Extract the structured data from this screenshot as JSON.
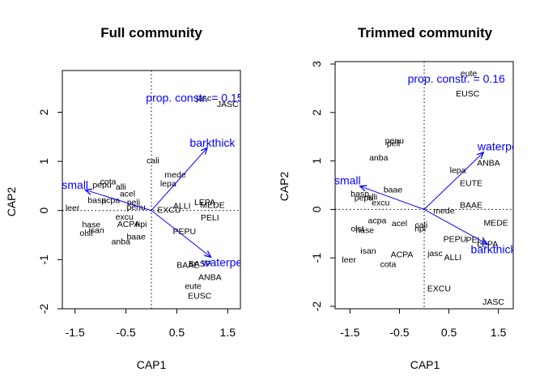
{
  "colors": {
    "vector": "#0000ff",
    "text": "#000000",
    "axis": "#000000"
  },
  "chart_data": [
    {
      "type": "scatter",
      "title": "Full community",
      "xlabel": "CAP1",
      "ylabel": "CAP2",
      "xlim": [
        -1.75,
        1.75
      ],
      "ylim": [
        -2.0,
        2.85
      ],
      "xticks": [
        -1.5,
        -0.5,
        0.5,
        1.5
      ],
      "xticklabels": [
        "-1.5",
        "-0.5",
        "0.5",
        "1.5"
      ],
      "yticks": [
        -2,
        -1,
        0,
        1,
        2
      ],
      "yticklabels": [
        "-2",
        "-1",
        "0",
        "1",
        "2"
      ],
      "annotation": {
        "text": "prop. constr. = 0.15",
        "x": 0.85,
        "y": 2.3
      },
      "vectors": [
        {
          "name": "barkthick",
          "x": 1.1,
          "y": 1.28,
          "lx": 1.2,
          "ly": 1.38
        },
        {
          "name": "small",
          "x": -1.3,
          "y": 0.42,
          "lx": -1.5,
          "ly": 0.52
        },
        {
          "name": "waterpen",
          "x": 1.17,
          "y": -0.95,
          "lx": 1.45,
          "ly": -1.05
        }
      ],
      "sites": [
        {
          "label": "JASC",
          "x": 1.5,
          "y": 2.17
        },
        {
          "label": "jasc",
          "x": 1.03,
          "y": 2.3
        },
        {
          "label": "cali",
          "x": 0.03,
          "y": 1.03
        },
        {
          "label": "mede",
          "x": 0.47,
          "y": 0.74
        },
        {
          "label": "lepa",
          "x": 0.33,
          "y": 0.56
        },
        {
          "label": "cota",
          "x": -0.85,
          "y": 0.6
        },
        {
          "label": "pepu",
          "x": -0.97,
          "y": 0.53
        },
        {
          "label": "alli",
          "x": -0.6,
          "y": 0.49
        },
        {
          "label": "acel",
          "x": -0.47,
          "y": 0.35
        },
        {
          "label": "basp",
          "x": -1.07,
          "y": 0.22
        },
        {
          "label": "acpa",
          "x": -0.8,
          "y": 0.22
        },
        {
          "label": "peli",
          "x": -0.35,
          "y": 0.18
        },
        {
          "label": "penu",
          "x": -0.3,
          "y": 0.08
        },
        {
          "label": "EXCU",
          "x": 0.35,
          "y": 0.02
        },
        {
          "label": "ALLI",
          "x": 0.6,
          "y": 0.1
        },
        {
          "label": "LEPA",
          "x": 1.05,
          "y": 0.18
        },
        {
          "label": "MEDE",
          "x": 1.2,
          "y": 0.12
        },
        {
          "label": "leer",
          "x": -1.55,
          "y": 0.06
        },
        {
          "label": "excu",
          "x": -0.53,
          "y": -0.12
        },
        {
          "label": "ACPA",
          "x": -0.45,
          "y": -0.27
        },
        {
          "label": "hase",
          "x": -1.18,
          "y": -0.28
        },
        {
          "label": "ripi",
          "x": -0.2,
          "y": -0.27
        },
        {
          "label": "PELI",
          "x": 1.15,
          "y": -0.14
        },
        {
          "label": "isan",
          "x": -1.08,
          "y": -0.39
        },
        {
          "label": "olst",
          "x": -1.28,
          "y": -0.45
        },
        {
          "label": "PEPU",
          "x": 0.65,
          "y": -0.42
        },
        {
          "label": "baae",
          "x": -0.3,
          "y": -0.52
        },
        {
          "label": "anba",
          "x": -0.6,
          "y": -0.62
        },
        {
          "label": "BAAE",
          "x": 0.72,
          "y": -1.1
        },
        {
          "label": "BASP",
          "x": 0.95,
          "y": -1.08
        },
        {
          "label": "ANBA",
          "x": 1.15,
          "y": -1.35
        },
        {
          "label": "eute",
          "x": 0.82,
          "y": -1.53
        },
        {
          "label": "EUSC",
          "x": 0.95,
          "y": -1.73
        }
      ]
    },
    {
      "type": "scatter",
      "title": "Trimmed community",
      "xlabel": "CAP1",
      "ylabel": "CAP2",
      "xlim": [
        -1.8,
        1.8
      ],
      "ylim": [
        -2.05,
        3.05
      ],
      "xticks": [
        -1.5,
        -0.5,
        0.5,
        1.5
      ],
      "xticklabels": [
        "-1.5",
        "-0.5",
        "0.5",
        "1.5"
      ],
      "yticks": [
        -2,
        -1,
        0,
        1,
        2,
        3
      ],
      "yticklabels": [
        "-2",
        "-1",
        "0",
        "1",
        "2",
        "3"
      ],
      "annotation": {
        "text": "prop. constr. = 0.16",
        "x": 0.65,
        "y": 2.7
      },
      "vectors": [
        {
          "name": "waterpen",
          "x": 1.2,
          "y": 1.18,
          "lx": 1.55,
          "ly": 1.3
        },
        {
          "name": "small",
          "x": -1.3,
          "y": 0.48,
          "lx": -1.55,
          "ly": 0.6
        },
        {
          "name": "barkthick",
          "x": 1.28,
          "y": -0.72,
          "lx": 1.4,
          "ly": -0.82
        }
      ],
      "sites": [
        {
          "label": "eute",
          "x": 0.9,
          "y": 2.82
        },
        {
          "label": "EUSC",
          "x": 0.88,
          "y": 2.4
        },
        {
          "label": "penu",
          "x": -0.6,
          "y": 1.43
        },
        {
          "label": "peli",
          "x": -0.62,
          "y": 1.37
        },
        {
          "label": "anba",
          "x": -0.92,
          "y": 1.08
        },
        {
          "label": "ANBA",
          "x": 1.3,
          "y": 0.97
        },
        {
          "label": "lepa",
          "x": 0.68,
          "y": 0.82
        },
        {
          "label": "EUTE",
          "x": 0.95,
          "y": 0.55
        },
        {
          "label": "baae",
          "x": -0.63,
          "y": 0.42
        },
        {
          "label": "basp",
          "x": -1.3,
          "y": 0.33
        },
        {
          "label": "alli",
          "x": -1.05,
          "y": 0.27
        },
        {
          "label": "pepu",
          "x": -1.22,
          "y": 0.25
        },
        {
          "label": "excu",
          "x": -0.88,
          "y": 0.15
        },
        {
          "label": "BAAE",
          "x": 0.95,
          "y": 0.1
        },
        {
          "label": "mede",
          "x": 0.4,
          "y": -0.02
        },
        {
          "label": "acpa",
          "x": -0.95,
          "y": -0.22
        },
        {
          "label": "acel",
          "x": -0.5,
          "y": -0.28
        },
        {
          "label": "cali",
          "x": -0.06,
          "y": -0.31
        },
        {
          "label": "ripi",
          "x": -0.08,
          "y": -0.39
        },
        {
          "label": "olst",
          "x": -1.35,
          "y": -0.39
        },
        {
          "label": "hase",
          "x": -1.2,
          "y": -0.42
        },
        {
          "label": "MEDE",
          "x": 1.45,
          "y": -0.27
        },
        {
          "label": "PEPU",
          "x": 0.62,
          "y": -0.6
        },
        {
          "label": "PELI",
          "x": 1.03,
          "y": -0.62
        },
        {
          "label": "LEPA",
          "x": 1.28,
          "y": -0.7
        },
        {
          "label": "isan",
          "x": -1.13,
          "y": -0.85
        },
        {
          "label": "ACPA",
          "x": -0.45,
          "y": -0.92
        },
        {
          "label": "jasc",
          "x": 0.22,
          "y": -0.9
        },
        {
          "label": "ALLI",
          "x": 0.58,
          "y": -0.98
        },
        {
          "label": "leer",
          "x": -1.52,
          "y": -1.03
        },
        {
          "label": "cota",
          "x": -0.73,
          "y": -1.12
        },
        {
          "label": "EXCU",
          "x": 0.3,
          "y": -1.62
        },
        {
          "label": "JASC",
          "x": 1.4,
          "y": -1.9
        }
      ]
    }
  ]
}
